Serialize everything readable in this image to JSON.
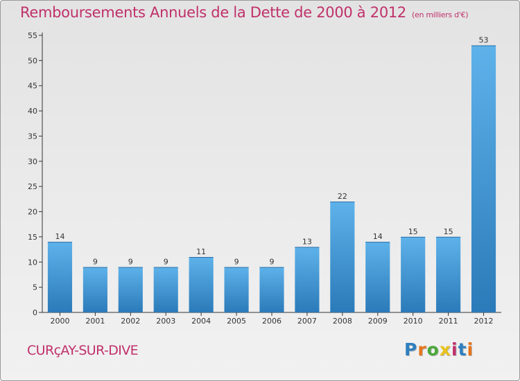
{
  "header": {
    "title": "Remboursements Annuels de la Dette de 2000 à 2012",
    "subtitle": "(en milliers d'€)"
  },
  "commune": "CURçAY-SUR-DIVE",
  "logo": {
    "text": "Proxiti",
    "colors": [
      "#2e7fc0",
      "#e8741a",
      "#4aa83a",
      "#e8c21a",
      "#c0306a",
      "#2e7fc0",
      "#e8741a"
    ]
  },
  "colors": {
    "title": "#c0306a",
    "bar_light": "#5aaee8",
    "bar_dark": "#2a78b8"
  },
  "chart_data": {
    "type": "bar",
    "categories": [
      "2000",
      "2001",
      "2002",
      "2003",
      "2004",
      "2005",
      "2006",
      "2007",
      "2008",
      "2009",
      "2010",
      "2011",
      "2012"
    ],
    "values": [
      14,
      9,
      9,
      9,
      11,
      9,
      9,
      13,
      22,
      14,
      15,
      15,
      53
    ],
    "ylim": [
      0,
      55
    ],
    "yticks": [
      0,
      5,
      10,
      15,
      20,
      25,
      30,
      35,
      40,
      45,
      50,
      55
    ],
    "grid": false,
    "data_labels": true
  }
}
